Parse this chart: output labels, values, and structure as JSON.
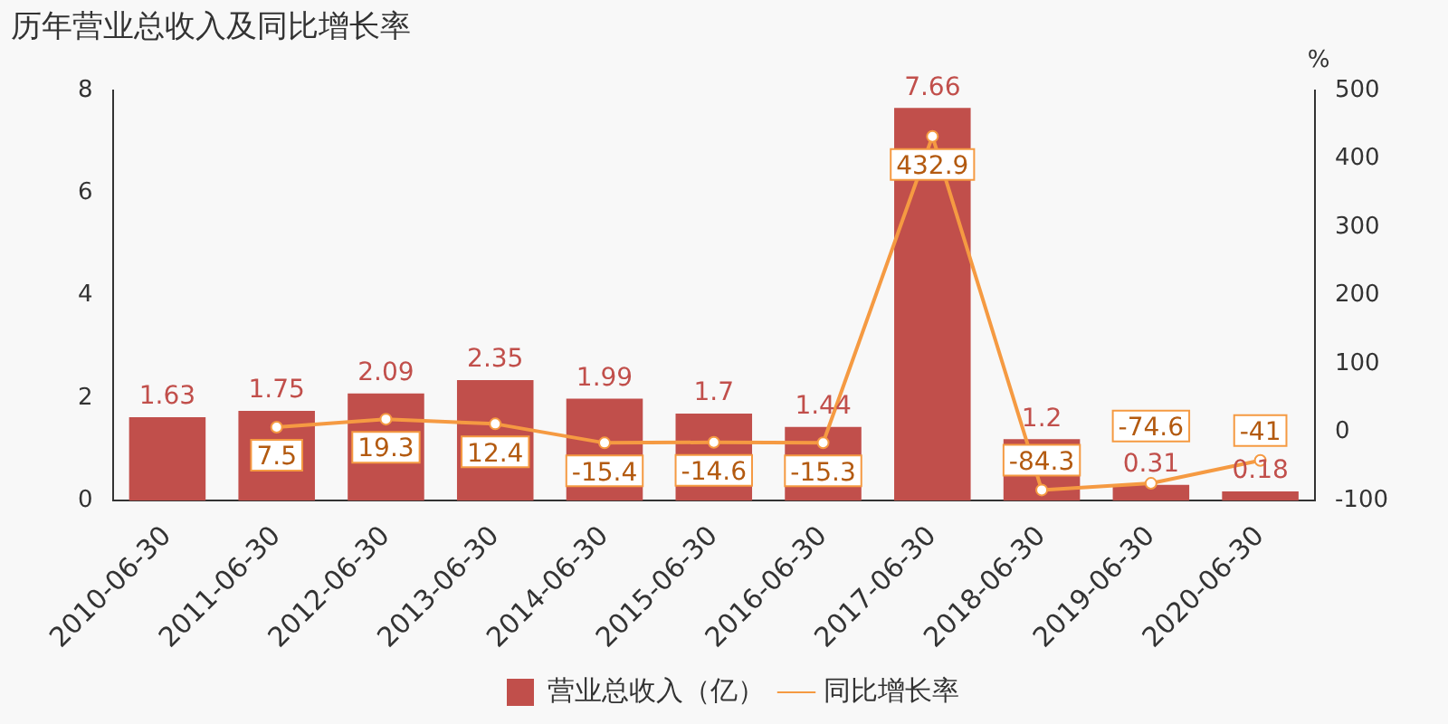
{
  "chart_data": {
    "type": "bar",
    "title": "历年营业总收入及同比增长率",
    "y2label": "%",
    "categories": [
      "2010-06-30",
      "2011-06-30",
      "2012-06-30",
      "2013-06-30",
      "2014-06-30",
      "2015-06-30",
      "2016-06-30",
      "2017-06-30",
      "2018-06-30",
      "2019-06-30",
      "2020-06-30"
    ],
    "series": [
      {
        "name": "营业总收入（亿）",
        "type": "bar",
        "color": "#c14f4b",
        "values": [
          1.63,
          1.75,
          2.09,
          2.35,
          1.99,
          1.7,
          1.44,
          7.66,
          1.2,
          0.31,
          0.18
        ]
      },
      {
        "name": "同比增长率",
        "type": "line",
        "axis": "y2",
        "color": "#f59a42",
        "marker": "circle",
        "values": [
          null,
          7.5,
          19.3,
          12.4,
          -15.4,
          -14.6,
          -15.3,
          432.9,
          -84.3,
          -74.6,
          -41
        ]
      }
    ],
    "ylim": [
      0,
      8
    ],
    "yticks": [
      0,
      2,
      4,
      6,
      8
    ],
    "y2lim": [
      -100,
      500
    ],
    "y2ticks": [
      -100,
      0,
      100,
      200,
      300,
      400,
      500
    ],
    "data_labels": true,
    "grid": false,
    "legend": "bottom"
  }
}
